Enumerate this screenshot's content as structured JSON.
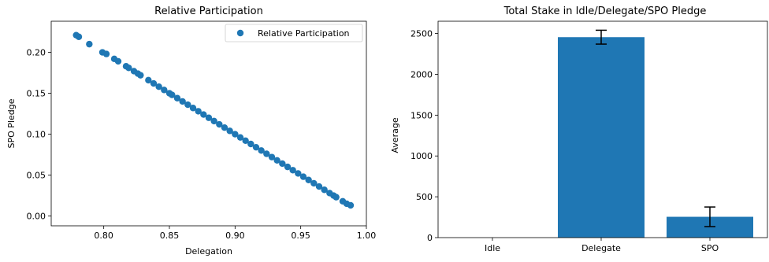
{
  "chart_data": [
    {
      "type": "scatter",
      "title": "Relative Participation",
      "xlabel": "Delegation",
      "ylabel": "SPO Pledge",
      "xlim": [
        0.76,
        1.0
      ],
      "ylim": [
        -0.012,
        0.238
      ],
      "xticks": [
        "0.80",
        "0.85",
        "0.90",
        "0.95",
        "1.00"
      ],
      "yticks": [
        "0.00",
        "0.05",
        "0.10",
        "0.15",
        "0.20"
      ],
      "legend": "top-right",
      "color": "#1f77b4",
      "series": [
        {
          "name": "Relative Participation",
          "x": [
            0.779,
            0.781,
            0.789,
            0.799,
            0.802,
            0.808,
            0.811,
            0.817,
            0.819,
            0.823,
            0.826,
            0.828,
            0.834,
            0.838,
            0.842,
            0.846,
            0.85,
            0.852,
            0.856,
            0.86,
            0.864,
            0.868,
            0.872,
            0.876,
            0.88,
            0.884,
            0.888,
            0.892,
            0.896,
            0.9,
            0.904,
            0.908,
            0.912,
            0.916,
            0.92,
            0.924,
            0.928,
            0.932,
            0.936,
            0.94,
            0.944,
            0.948,
            0.952,
            0.956,
            0.96,
            0.964,
            0.968,
            0.972,
            0.975,
            0.977,
            0.982,
            0.985,
            0.988
          ],
          "y": [
            0.221,
            0.219,
            0.21,
            0.2,
            0.198,
            0.192,
            0.189,
            0.183,
            0.181,
            0.177,
            0.174,
            0.172,
            0.166,
            0.162,
            0.158,
            0.154,
            0.15,
            0.148,
            0.144,
            0.14,
            0.136,
            0.132,
            0.128,
            0.124,
            0.12,
            0.116,
            0.112,
            0.108,
            0.104,
            0.1,
            0.096,
            0.092,
            0.088,
            0.084,
            0.08,
            0.076,
            0.072,
            0.068,
            0.064,
            0.06,
            0.056,
            0.052,
            0.048,
            0.044,
            0.04,
            0.036,
            0.032,
            0.028,
            0.025,
            0.023,
            0.018,
            0.015,
            0.013
          ]
        }
      ]
    },
    {
      "type": "bar",
      "title": "Total Stake in Idle/Delegate/SPO Pledge",
      "xlabel": "",
      "ylabel": "Average",
      "ylim": [
        0,
        2650
      ],
      "yticks": [
        "0",
        "500",
        "1000",
        "1500",
        "2000",
        "2500"
      ],
      "categories": [
        "Idle",
        "Delegate",
        "SPO"
      ],
      "values": [
        0,
        2455,
        255
      ],
      "errors": [
        0,
        85,
        120
      ],
      "color": "#1f77b4"
    }
  ]
}
